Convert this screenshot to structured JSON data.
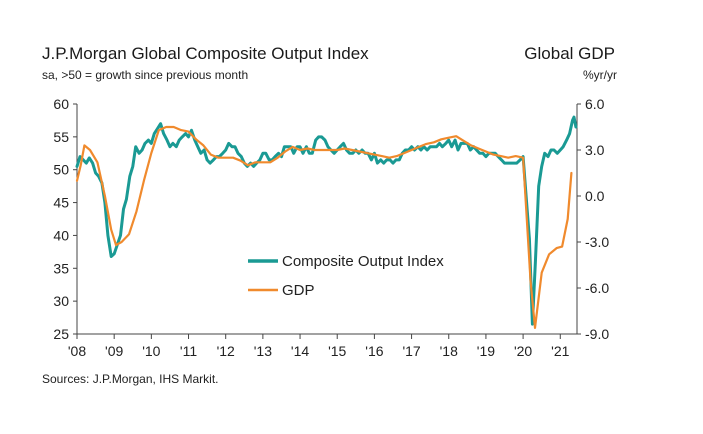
{
  "header": {
    "title": "J.P.Morgan Global Composite Output Index",
    "subtitle": "sa, >50 = growth since previous month",
    "right_title": "Global GDP",
    "right_unit": "%yr/yr"
  },
  "footer": {
    "source": "Sources: J.P.Morgan, IHS Markit."
  },
  "chart_data": {
    "type": "line",
    "title": "J.P.Morgan Global Composite Output Index",
    "xlim": [
      2008.0,
      2021.45
    ],
    "ylim_left": [
      25,
      60
    ],
    "ylim_right": [
      -9.0,
      6.0
    ],
    "y_ticks_left": [
      25,
      30,
      35,
      40,
      45,
      50,
      55,
      60
    ],
    "y_ticks_right": [
      "-9.0",
      "-6.0",
      "-3.0",
      "0.0",
      "3.0",
      "6.0"
    ],
    "x_ticks": [
      {
        "x": 2008,
        "label": "'08"
      },
      {
        "x": 2009,
        "label": "'09"
      },
      {
        "x": 2010,
        "label": "'10"
      },
      {
        "x": 2011,
        "label": "'11"
      },
      {
        "x": 2012,
        "label": "'12"
      },
      {
        "x": 2013,
        "label": "'13"
      },
      {
        "x": 2014,
        "label": "'14"
      },
      {
        "x": 2015,
        "label": "'15"
      },
      {
        "x": 2016,
        "label": "'16"
      },
      {
        "x": 2017,
        "label": "'17"
      },
      {
        "x": 2018,
        "label": "'18"
      },
      {
        "x": 2019,
        "label": "'19"
      },
      {
        "x": 2020,
        "label": "'20"
      },
      {
        "x": 2021,
        "label": "'21"
      }
    ],
    "legend": "center",
    "grid": false,
    "series": [
      {
        "name": "Composite Output Index",
        "axis": "left",
        "color": "#1a9a94",
        "points": [
          [
            2008.0,
            50.5
          ],
          [
            2008.08,
            52.0
          ],
          [
            2008.17,
            51.5
          ],
          [
            2008.25,
            51.0
          ],
          [
            2008.33,
            51.8
          ],
          [
            2008.42,
            51.0
          ],
          [
            2008.5,
            49.5
          ],
          [
            2008.58,
            49.0
          ],
          [
            2008.67,
            48.0
          ],
          [
            2008.75,
            45.0
          ],
          [
            2008.83,
            40.0
          ],
          [
            2008.92,
            36.8
          ],
          [
            2009.0,
            37.2
          ],
          [
            2009.08,
            38.5
          ],
          [
            2009.17,
            40.0
          ],
          [
            2009.25,
            44.0
          ],
          [
            2009.33,
            45.5
          ],
          [
            2009.42,
            49.0
          ],
          [
            2009.5,
            50.5
          ],
          [
            2009.58,
            53.5
          ],
          [
            2009.67,
            52.5
          ],
          [
            2009.75,
            53.0
          ],
          [
            2009.83,
            54.0
          ],
          [
            2009.92,
            54.5
          ],
          [
            2010.0,
            54.0
          ],
          [
            2010.08,
            55.5
          ],
          [
            2010.17,
            56.3
          ],
          [
            2010.25,
            57.0
          ],
          [
            2010.33,
            55.5
          ],
          [
            2010.42,
            54.5
          ],
          [
            2010.5,
            53.5
          ],
          [
            2010.58,
            54.0
          ],
          [
            2010.67,
            53.5
          ],
          [
            2010.75,
            54.5
          ],
          [
            2010.83,
            55.0
          ],
          [
            2010.92,
            55.5
          ],
          [
            2011.0,
            55.0
          ],
          [
            2011.08,
            56.0
          ],
          [
            2011.17,
            54.5
          ],
          [
            2011.25,
            53.5
          ],
          [
            2011.33,
            52.5
          ],
          [
            2011.42,
            53.0
          ],
          [
            2011.5,
            51.5
          ],
          [
            2011.58,
            51.0
          ],
          [
            2011.67,
            51.5
          ],
          [
            2011.75,
            52.0
          ],
          [
            2011.83,
            52.0
          ],
          [
            2011.92,
            52.5
          ],
          [
            2012.0,
            53.0
          ],
          [
            2012.08,
            54.0
          ],
          [
            2012.17,
            53.5
          ],
          [
            2012.25,
            53.5
          ],
          [
            2012.33,
            52.5
          ],
          [
            2012.42,
            52.0
          ],
          [
            2012.5,
            51.0
          ],
          [
            2012.58,
            50.5
          ],
          [
            2012.67,
            51.0
          ],
          [
            2012.75,
            50.5
          ],
          [
            2012.83,
            51.0
          ],
          [
            2012.92,
            51.5
          ],
          [
            2013.0,
            52.5
          ],
          [
            2013.08,
            52.5
          ],
          [
            2013.17,
            51.5
          ],
          [
            2013.25,
            51.5
          ],
          [
            2013.33,
            52.0
          ],
          [
            2013.42,
            52.5
          ],
          [
            2013.5,
            52.0
          ],
          [
            2013.58,
            53.5
          ],
          [
            2013.67,
            53.5
          ],
          [
            2013.75,
            53.5
          ],
          [
            2013.83,
            52.5
          ],
          [
            2013.92,
            53.5
          ],
          [
            2014.0,
            53.5
          ],
          [
            2014.08,
            52.5
          ],
          [
            2014.17,
            53.5
          ],
          [
            2014.25,
            52.5
          ],
          [
            2014.33,
            52.5
          ],
          [
            2014.42,
            54.5
          ],
          [
            2014.5,
            55.0
          ],
          [
            2014.58,
            55.0
          ],
          [
            2014.67,
            54.5
          ],
          [
            2014.75,
            53.5
          ],
          [
            2014.83,
            53.0
          ],
          [
            2014.92,
            52.5
          ],
          [
            2015.0,
            53.0
          ],
          [
            2015.08,
            53.5
          ],
          [
            2015.17,
            54.0
          ],
          [
            2015.25,
            53.0
          ],
          [
            2015.33,
            52.5
          ],
          [
            2015.42,
            52.5
          ],
          [
            2015.5,
            53.0
          ],
          [
            2015.58,
            52.5
          ],
          [
            2015.67,
            53.0
          ],
          [
            2015.75,
            52.5
          ],
          [
            2015.83,
            52.5
          ],
          [
            2015.92,
            51.5
          ],
          [
            2016.0,
            52.5
          ],
          [
            2016.08,
            51.0
          ],
          [
            2016.17,
            51.5
          ],
          [
            2016.25,
            51.0
          ],
          [
            2016.33,
            51.5
          ],
          [
            2016.42,
            51.5
          ],
          [
            2016.5,
            51.0
          ],
          [
            2016.58,
            51.5
          ],
          [
            2016.67,
            51.5
          ],
          [
            2016.75,
            52.5
          ],
          [
            2016.83,
            53.0
          ],
          [
            2016.92,
            53.0
          ],
          [
            2017.0,
            53.5
          ],
          [
            2017.08,
            53.0
          ],
          [
            2017.17,
            53.5
          ],
          [
            2017.25,
            53.0
          ],
          [
            2017.33,
            53.5
          ],
          [
            2017.42,
            53.0
          ],
          [
            2017.5,
            53.5
          ],
          [
            2017.58,
            53.5
          ],
          [
            2017.67,
            53.5
          ],
          [
            2017.75,
            54.0
          ],
          [
            2017.83,
            53.5
          ],
          [
            2017.92,
            54.0
          ],
          [
            2018.0,
            54.5
          ],
          [
            2018.08,
            53.5
          ],
          [
            2018.17,
            54.5
          ],
          [
            2018.25,
            53.0
          ],
          [
            2018.33,
            54.0
          ],
          [
            2018.42,
            54.0
          ],
          [
            2018.5,
            54.0
          ],
          [
            2018.58,
            53.0
          ],
          [
            2018.67,
            53.5
          ],
          [
            2018.75,
            53.0
          ],
          [
            2018.83,
            52.5
          ],
          [
            2018.92,
            52.5
          ],
          [
            2019.0,
            52.0
          ],
          [
            2019.08,
            52.5
          ],
          [
            2019.17,
            52.5
          ],
          [
            2019.25,
            52.5
          ],
          [
            2019.33,
            52.0
          ],
          [
            2019.42,
            51.5
          ],
          [
            2019.5,
            51.0
          ],
          [
            2019.58,
            51.0
          ],
          [
            2019.67,
            51.0
          ],
          [
            2019.75,
            51.0
          ],
          [
            2019.83,
            51.0
          ],
          [
            2019.92,
            51.5
          ],
          [
            2020.0,
            52.0
          ],
          [
            2020.08,
            46.0
          ],
          [
            2020.17,
            39.5
          ],
          [
            2020.25,
            26.5
          ],
          [
            2020.33,
            36.0
          ],
          [
            2020.42,
            47.5
          ],
          [
            2020.5,
            50.5
          ],
          [
            2020.58,
            52.5
          ],
          [
            2020.67,
            52.0
          ],
          [
            2020.75,
            53.0
          ],
          [
            2020.83,
            53.0
          ],
          [
            2020.92,
            52.5
          ],
          [
            2021.0,
            53.0
          ],
          [
            2021.08,
            53.5
          ],
          [
            2021.17,
            54.5
          ],
          [
            2021.25,
            55.5
          ],
          [
            2021.33,
            57.5
          ],
          [
            2021.37,
            58.0
          ],
          [
            2021.42,
            56.5
          ]
        ]
      },
      {
        "name": "GDP",
        "axis": "right",
        "color": "#f08a2d",
        "points": [
          [
            2008.0,
            1.0
          ],
          [
            2008.1,
            2.0
          ],
          [
            2008.2,
            3.3
          ],
          [
            2008.35,
            3.0
          ],
          [
            2008.55,
            2.2
          ],
          [
            2008.75,
            0.0
          ],
          [
            2008.92,
            -2.2
          ],
          [
            2009.05,
            -3.2
          ],
          [
            2009.2,
            -3.0
          ],
          [
            2009.4,
            -2.5
          ],
          [
            2009.6,
            -1.0
          ],
          [
            2009.8,
            1.0
          ],
          [
            2010.0,
            2.8
          ],
          [
            2010.2,
            4.3
          ],
          [
            2010.4,
            4.5
          ],
          [
            2010.6,
            4.5
          ],
          [
            2010.8,
            4.3
          ],
          [
            2011.0,
            4.2
          ],
          [
            2011.2,
            3.7
          ],
          [
            2011.4,
            3.3
          ],
          [
            2011.6,
            2.7
          ],
          [
            2011.8,
            2.5
          ],
          [
            2012.0,
            2.5
          ],
          [
            2012.2,
            2.5
          ],
          [
            2012.4,
            2.3
          ],
          [
            2012.6,
            2.0
          ],
          [
            2012.8,
            2.2
          ],
          [
            2013.0,
            2.2
          ],
          [
            2013.2,
            2.2
          ],
          [
            2013.4,
            2.5
          ],
          [
            2013.6,
            2.9
          ],
          [
            2013.8,
            3.2
          ],
          [
            2014.0,
            3.0
          ],
          [
            2014.2,
            3.1
          ],
          [
            2014.4,
            3.0
          ],
          [
            2014.6,
            3.0
          ],
          [
            2014.8,
            3.0
          ],
          [
            2015.0,
            3.0
          ],
          [
            2015.2,
            3.1
          ],
          [
            2015.4,
            3.0
          ],
          [
            2015.6,
            2.9
          ],
          [
            2015.8,
            2.8
          ],
          [
            2016.0,
            2.7
          ],
          [
            2016.2,
            2.6
          ],
          [
            2016.4,
            2.5
          ],
          [
            2016.6,
            2.6
          ],
          [
            2016.8,
            2.8
          ],
          [
            2017.0,
            3.0
          ],
          [
            2017.2,
            3.2
          ],
          [
            2017.4,
            3.4
          ],
          [
            2017.6,
            3.5
          ],
          [
            2017.8,
            3.7
          ],
          [
            2018.0,
            3.8
          ],
          [
            2018.2,
            3.9
          ],
          [
            2018.4,
            3.6
          ],
          [
            2018.6,
            3.3
          ],
          [
            2018.8,
            3.1
          ],
          [
            2019.0,
            2.9
          ],
          [
            2019.2,
            2.7
          ],
          [
            2019.4,
            2.6
          ],
          [
            2019.6,
            2.5
          ],
          [
            2019.8,
            2.6
          ],
          [
            2020.0,
            2.5
          ],
          [
            2020.1,
            -1.5
          ],
          [
            2020.2,
            -5.5
          ],
          [
            2020.32,
            -8.6
          ],
          [
            2020.5,
            -5.0
          ],
          [
            2020.7,
            -3.8
          ],
          [
            2020.9,
            -3.4
          ],
          [
            2021.05,
            -3.3
          ],
          [
            2021.2,
            -1.5
          ],
          [
            2021.3,
            1.5
          ]
        ]
      }
    ]
  }
}
